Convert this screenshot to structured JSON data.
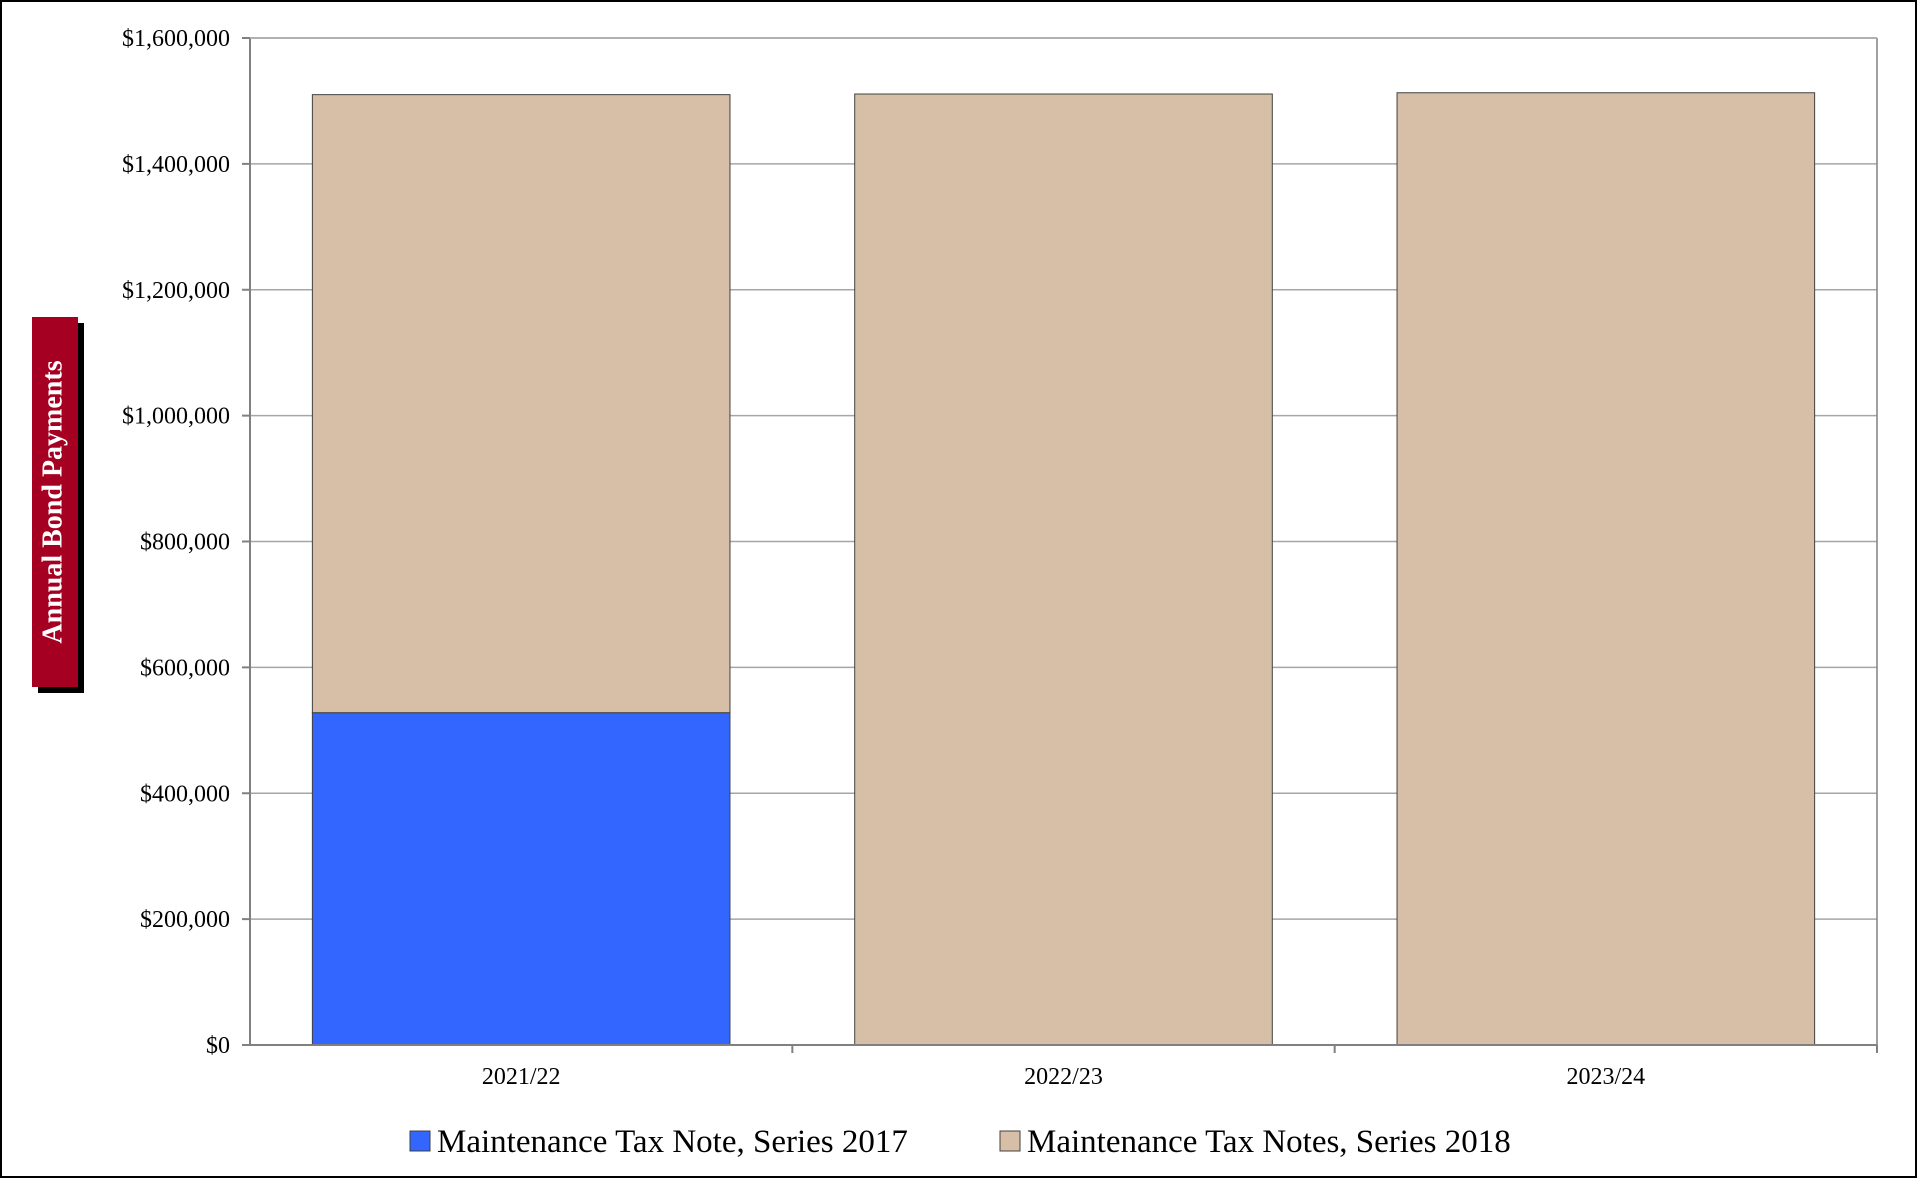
{
  "chart_data": {
    "type": "bar",
    "stacked": true,
    "title": "",
    "xlabel": "",
    "ylabel": "Annual Bond Payments",
    "categories": [
      "2021/22",
      "2022/23",
      "2023/24"
    ],
    "series": [
      {
        "name": "Maintenance Tax Note, Series 2017",
        "color": "#3366ff",
        "values": [
          528000,
          0,
          0
        ]
      },
      {
        "name": "Maintenance Tax Notes, Series 2018",
        "color": "#d6bfa6",
        "values": [
          982000,
          1511000,
          1513000
        ]
      }
    ],
    "ylim": [
      0,
      1600000
    ],
    "yticks": [
      0,
      200000,
      400000,
      600000,
      800000,
      1000000,
      1200000,
      1400000,
      1600000
    ],
    "ytick_labels": [
      "$0",
      "$200,000",
      "$400,000",
      "$600,000",
      "$800,000",
      "$1,000,000",
      "$1,200,000",
      "$1,400,000",
      "$1,600,000"
    ],
    "grid": true,
    "legend_position": "bottom",
    "ylabel_badge_color": "#a50021"
  }
}
